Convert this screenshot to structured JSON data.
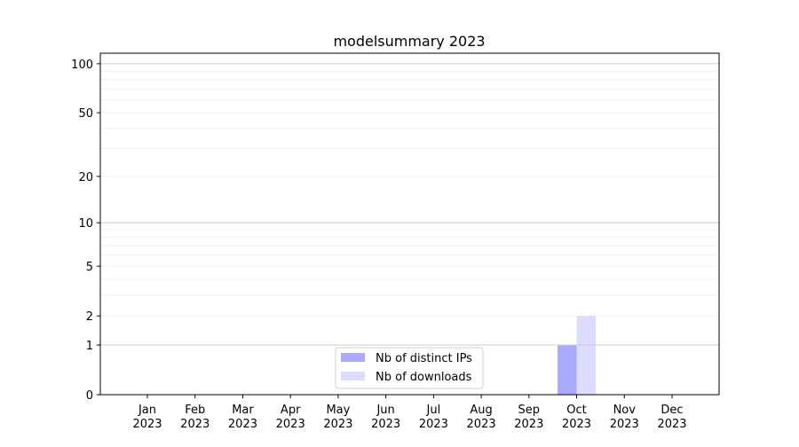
{
  "chart_data": {
    "type": "bar",
    "title": "modelsummary 2023",
    "xlabel": "",
    "ylabel": "",
    "yscale": "log(1+y)",
    "ylim": [
      0,
      116
    ],
    "yticks": [
      0,
      1,
      2,
      5,
      10,
      20,
      50,
      100
    ],
    "grid": true,
    "legend_position": "lower-center",
    "categories": [
      "Jan\n2023",
      "Feb\n2023",
      "Mar\n2023",
      "Apr\n2023",
      "May\n2023",
      "Jun\n2023",
      "Jul\n2023",
      "Aug\n2023",
      "Sep\n2023",
      "Oct\n2023",
      "Nov\n2023",
      "Dec\n2023"
    ],
    "series": [
      {
        "name": "Nb of distinct IPs",
        "color": "#aaaaff",
        "values": [
          0,
          0,
          0,
          0,
          0,
          0,
          0,
          0,
          0,
          1,
          0,
          0
        ]
      },
      {
        "name": "Nb of downloads",
        "color": "#dcdcff",
        "values": [
          0,
          0,
          0,
          0,
          0,
          0,
          0,
          0,
          0,
          2,
          0,
          0
        ]
      }
    ]
  }
}
